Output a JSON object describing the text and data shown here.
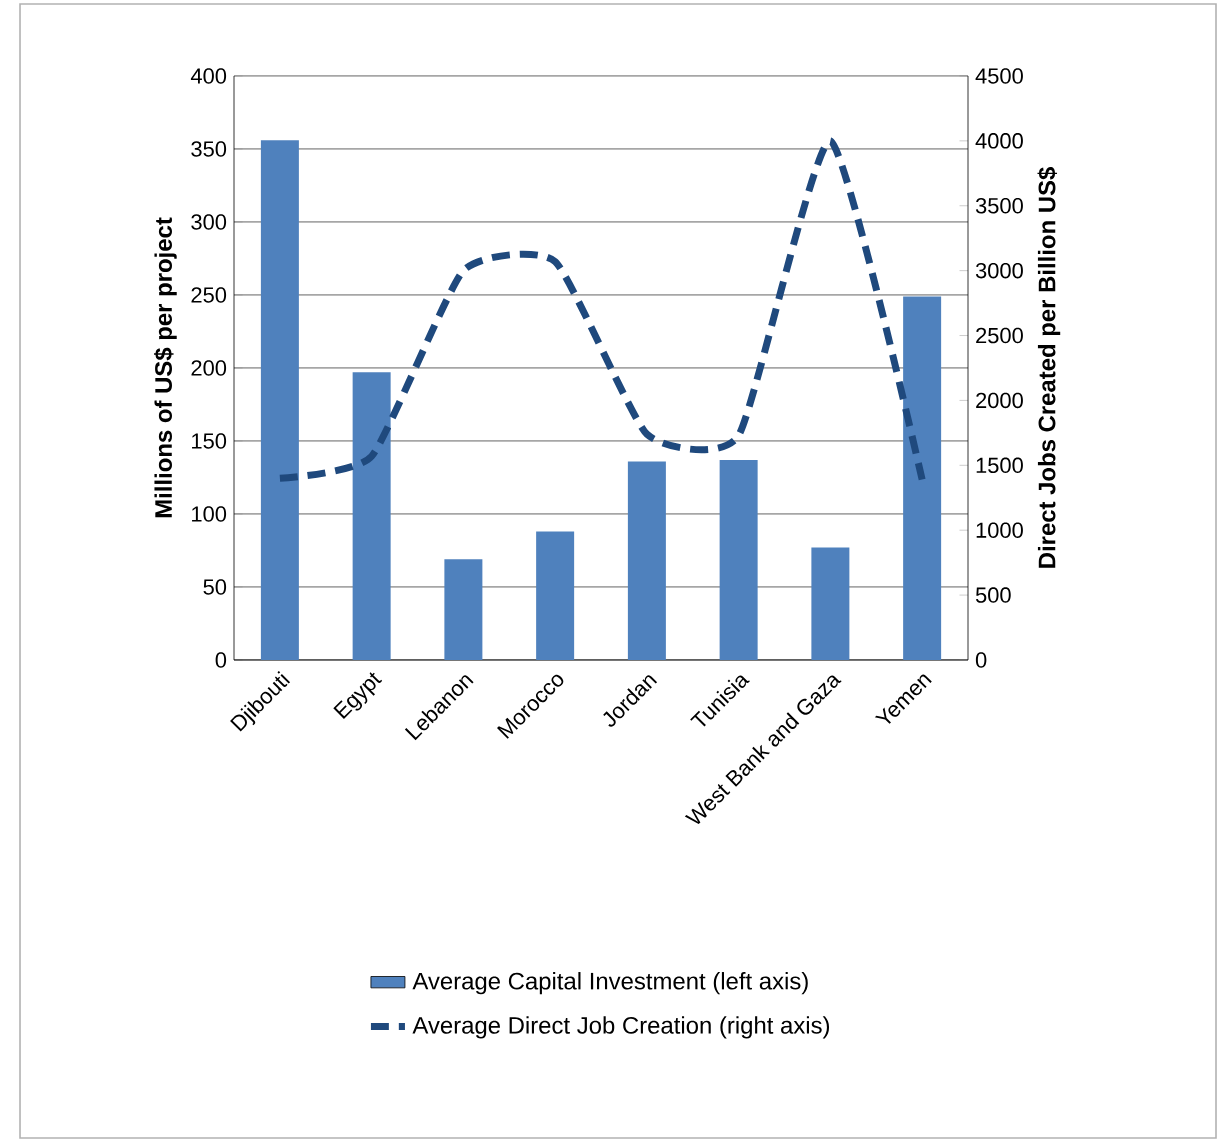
{
  "chart_data": {
    "type": "bar",
    "categories": [
      "Djibouti",
      "Egypt",
      "Lebanon",
      "Morocco",
      "Jordan",
      "Tunisia",
      "West Bank and Gaza",
      "Yemen"
    ],
    "ylabel": "Millions of US$ per project",
    "y2label": "Direct Jobs Created per Billion US$",
    "ylim": [
      0,
      400
    ],
    "yticks": [
      0,
      50,
      100,
      150,
      200,
      250,
      300,
      350,
      400
    ],
    "y2lim": [
      0,
      4500
    ],
    "y2ticks": [
      0,
      500,
      1000,
      1500,
      2000,
      2500,
      3000,
      3500,
      4000,
      4500
    ],
    "grid": "y",
    "legend": "bottom",
    "series": [
      {
        "name": "Average Capital Investment (left axis)",
        "color": "#4f81bd",
        "values": [
          356,
          197,
          69,
          88,
          136,
          137,
          77,
          249
        ]
      },
      {
        "name": "Average Direct Job Creation (right axis)",
        "type": "line",
        "axis": "y2",
        "color": "#1f497d",
        "line_style": "dashed",
        "marker": "none",
        "values": [
          1400,
          1570,
          3000,
          3070,
          1740,
          1730,
          4000,
          1390
        ]
      }
    ]
  }
}
